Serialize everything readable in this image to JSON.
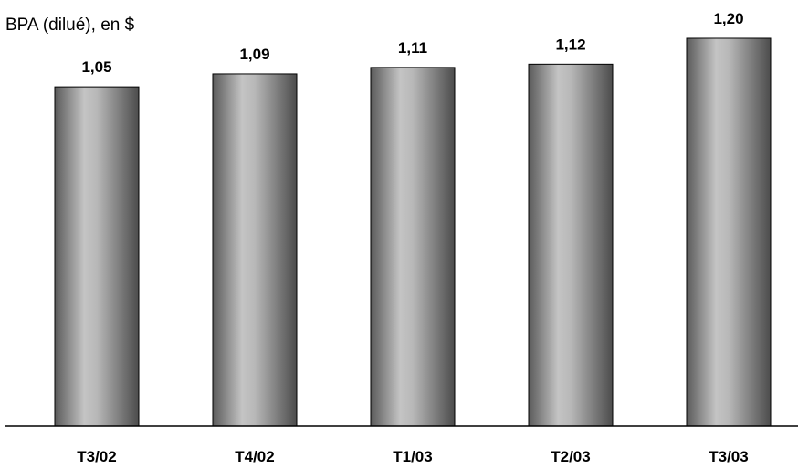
{
  "chart_data": {
    "type": "bar",
    "title": "BPA (dilué), en $",
    "xlabel": "",
    "ylabel": "",
    "categories": [
      "T3/02",
      "T4/02",
      "T1/03",
      "T2/03",
      "T3/03"
    ],
    "values": [
      1.05,
      1.09,
      1.11,
      1.12,
      1.2
    ],
    "value_labels": [
      "1,05",
      "1,09",
      "1,11",
      "1,12",
      "1,20"
    ],
    "ylim": [
      0,
      1.2
    ],
    "grid": false,
    "legend": "none",
    "bar_color": "#8c8c8c"
  }
}
